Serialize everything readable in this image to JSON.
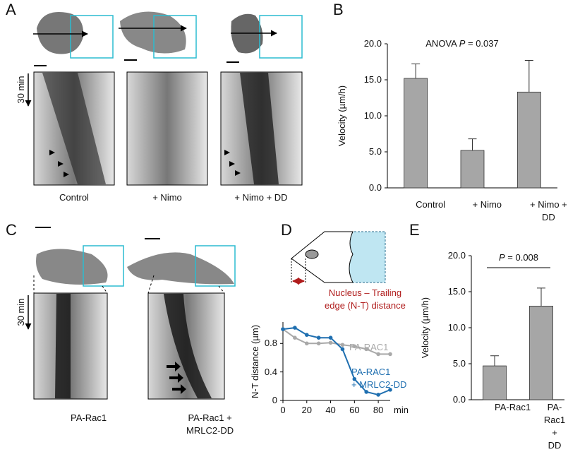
{
  "figure": {
    "panel_labels": [
      "A",
      "B",
      "C",
      "D",
      "E"
    ],
    "A": {
      "time": "30 min",
      "captions": [
        "Control",
        "+ Nimo",
        "+ Nimo + DD"
      ]
    },
    "C": {
      "time": "30 min",
      "captions": [
        "PA-Rac1",
        "PA-Rac1 +\nMRLC2-DD"
      ]
    },
    "D": {
      "diagram_caption": "Nucleus – Trailing\nedge (N-T) distance"
    }
  },
  "chart_data": [
    {
      "type": "bar",
      "ylabel": "Velocity (µm/h)",
      "annotation": {
        "prefix": "ANOVA ",
        "stat": "P",
        "value": " = 0.037"
      },
      "categories": [
        "Control",
        "+ Nimo",
        "+ Nimo + DD"
      ],
      "values": [
        15.2,
        5.2,
        13.3
      ],
      "errors": [
        2.0,
        1.6,
        4.4
      ],
      "color": "#a6a6a6",
      "ylim": [
        0,
        20
      ],
      "yticks": [
        {
          "value": 0,
          "label": "0.0"
        },
        {
          "value": 5,
          "label": "5.0"
        },
        {
          "value": 10,
          "label": "10.0"
        },
        {
          "value": 15,
          "label": "15.0"
        },
        {
          "value": 20,
          "label": "20.0"
        }
      ]
    },
    {
      "type": "line",
      "ylabel": "N-T distance (µm)",
      "xlabel": "min",
      "x": [
        0,
        10,
        20,
        30,
        40,
        50,
        60,
        70,
        80,
        90
      ],
      "series": [
        {
          "name": "PA-RAC1",
          "color": "#a9a9a9",
          "values": [
            1.0,
            0.88,
            0.8,
            0.8,
            0.81,
            0.78,
            0.76,
            0.72,
            0.65,
            0.65
          ]
        },
        {
          "name": "PA-RAC1\n+ MRLC2-DD",
          "color": "#1f6fb0",
          "values": [
            1.0,
            1.02,
            0.92,
            0.88,
            0.88,
            0.72,
            0.3,
            0.12,
            0.08,
            0.15
          ]
        }
      ],
      "xlim": [
        0,
        90
      ],
      "xticks": [
        0,
        20,
        40,
        60,
        80
      ],
      "ylim": [
        0,
        1.1
      ],
      "yticks": [
        0,
        0.4,
        0.8
      ]
    },
    {
      "type": "bar",
      "ylabel": "Velocity (µm/h)",
      "annotation": {
        "prefix": "",
        "stat": "P",
        "value": " = 0.008"
      },
      "categories": [
        "PA-Rac1",
        "PA-Rac1 +\nDD"
      ],
      "values": [
        4.7,
        13.0
      ],
      "errors": [
        1.4,
        2.5
      ],
      "color": "#a6a6a6",
      "ylim": [
        0,
        20
      ],
      "yticks": [
        {
          "value": 0,
          "label": "0.0"
        },
        {
          "value": 5,
          "label": "5.0"
        },
        {
          "value": 10,
          "label": "10.0"
        },
        {
          "value": 15,
          "label": "15.0"
        },
        {
          "value": 20,
          "label": "20.0"
        }
      ]
    }
  ]
}
